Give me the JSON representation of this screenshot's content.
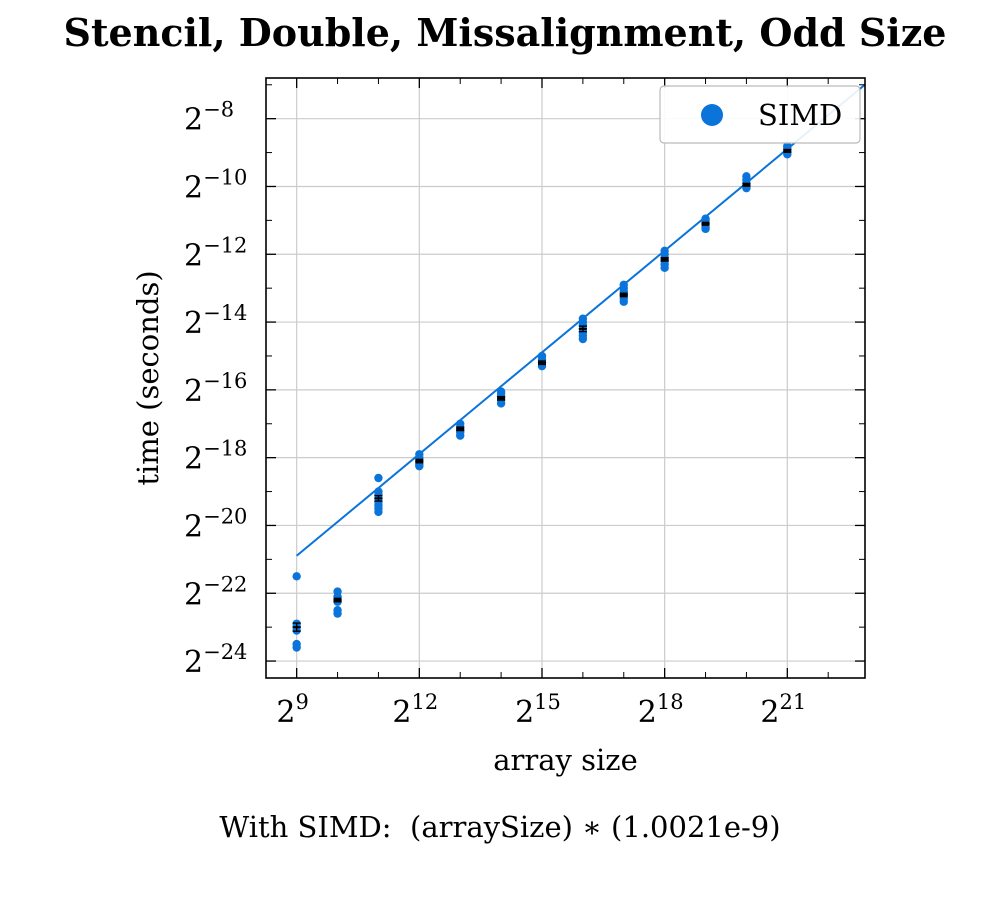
{
  "title": "Stencil, Double, Missalignment, Odd Size",
  "caption": {
    "label": "With SIMD:",
    "formula": "(arraySize) ∗ (1.0021e-9)"
  },
  "colors": {
    "series": "#0a74da",
    "errorbar": "#000000",
    "grid": "#cccccc",
    "axis": "#000000"
  },
  "chart_data": {
    "type": "scatter",
    "title": "Stencil, Double, Missalignment, Odd Size",
    "xlabel": "array size",
    "ylabel": "time (seconds)",
    "xscale": "log2",
    "yscale": "log2",
    "xlim_log2": [
      8.25,
      22.9
    ],
    "ylim_log2": [
      -24.5,
      -6.8
    ],
    "x_ticks_log2": [
      9,
      12,
      15,
      18,
      21
    ],
    "y_ticks_log2": [
      -8,
      -10,
      -12,
      -14,
      -16,
      -18,
      -20,
      -22,
      -24
    ],
    "grid": true,
    "legend": {
      "position": "top-right",
      "entries": [
        "SIMD"
      ]
    },
    "series": [
      {
        "name": "SIMD",
        "points_log2": [
          {
            "x": 9,
            "y": [
              -21.5,
              -22.9,
              -23.0,
              -23.1,
              -23.5,
              -23.6
            ]
          },
          {
            "x": 10,
            "y": [
              -21.95,
              -22.1,
              -22.2,
              -22.25,
              -22.5,
              -22.6
            ]
          },
          {
            "x": 11,
            "y": [
              -18.6,
              -19.0,
              -19.1,
              -19.2,
              -19.3,
              -19.4,
              -19.5,
              -19.6
            ]
          },
          {
            "x": 12,
            "y": [
              -17.9,
              -18.0,
              -18.1,
              -18.2,
              -18.25
            ]
          },
          {
            "x": 13,
            "y": [
              -17.0,
              -17.1,
              -17.2,
              -17.25,
              -17.35
            ]
          },
          {
            "x": 14,
            "y": [
              -16.05,
              -16.1,
              -16.2,
              -16.3,
              -16.4
            ]
          },
          {
            "x": 15,
            "y": [
              -15.0,
              -15.1,
              -15.2,
              -15.3
            ]
          },
          {
            "x": 16,
            "y": [
              -13.9,
              -14.0,
              -14.1,
              -14.2,
              -14.3,
              -14.4,
              -14.5
            ]
          },
          {
            "x": 17,
            "y": [
              -12.9,
              -13.0,
              -13.1,
              -13.2,
              -13.3,
              -13.4
            ]
          },
          {
            "x": 18,
            "y": [
              -11.9,
              -12.0,
              -12.1,
              -12.2,
              -12.3,
              -12.4
            ]
          },
          {
            "x": 19,
            "y": [
              -10.95,
              -11.0,
              -11.1,
              -11.2,
              -11.25
            ]
          },
          {
            "x": 20,
            "y": [
              -9.7,
              -9.8,
              -9.9,
              -10.0,
              -10.05
            ]
          },
          {
            "x": 21,
            "y": [
              -8.8,
              -8.85,
              -8.9,
              -9.0,
              -9.05
            ]
          }
        ],
        "means_log2": [
          {
            "x": 9,
            "y": -23.0,
            "err": 0.12
          },
          {
            "x": 10,
            "y": -22.2,
            "err": 0.05
          },
          {
            "x": 11,
            "y": -19.2,
            "err": 0.08
          },
          {
            "x": 12,
            "y": -18.1,
            "err": 0.05
          },
          {
            "x": 13,
            "y": -17.15,
            "err": 0.05
          },
          {
            "x": 14,
            "y": -16.25,
            "err": 0.05
          },
          {
            "x": 15,
            "y": -15.2,
            "err": 0.05
          },
          {
            "x": 16,
            "y": -14.2,
            "err": 0.08
          },
          {
            "x": 17,
            "y": -13.2,
            "err": 0.05
          },
          {
            "x": 18,
            "y": -12.15,
            "err": 0.05
          },
          {
            "x": 19,
            "y": -11.1,
            "err": 0.04
          },
          {
            "x": 20,
            "y": -9.95,
            "err": 0.04
          },
          {
            "x": 21,
            "y": -8.95,
            "err": 0.04
          }
        ],
        "fit": {
          "formula": "(arraySize) * (1.0021e-9)",
          "coefficient": 1.0021e-09
        }
      }
    ]
  }
}
